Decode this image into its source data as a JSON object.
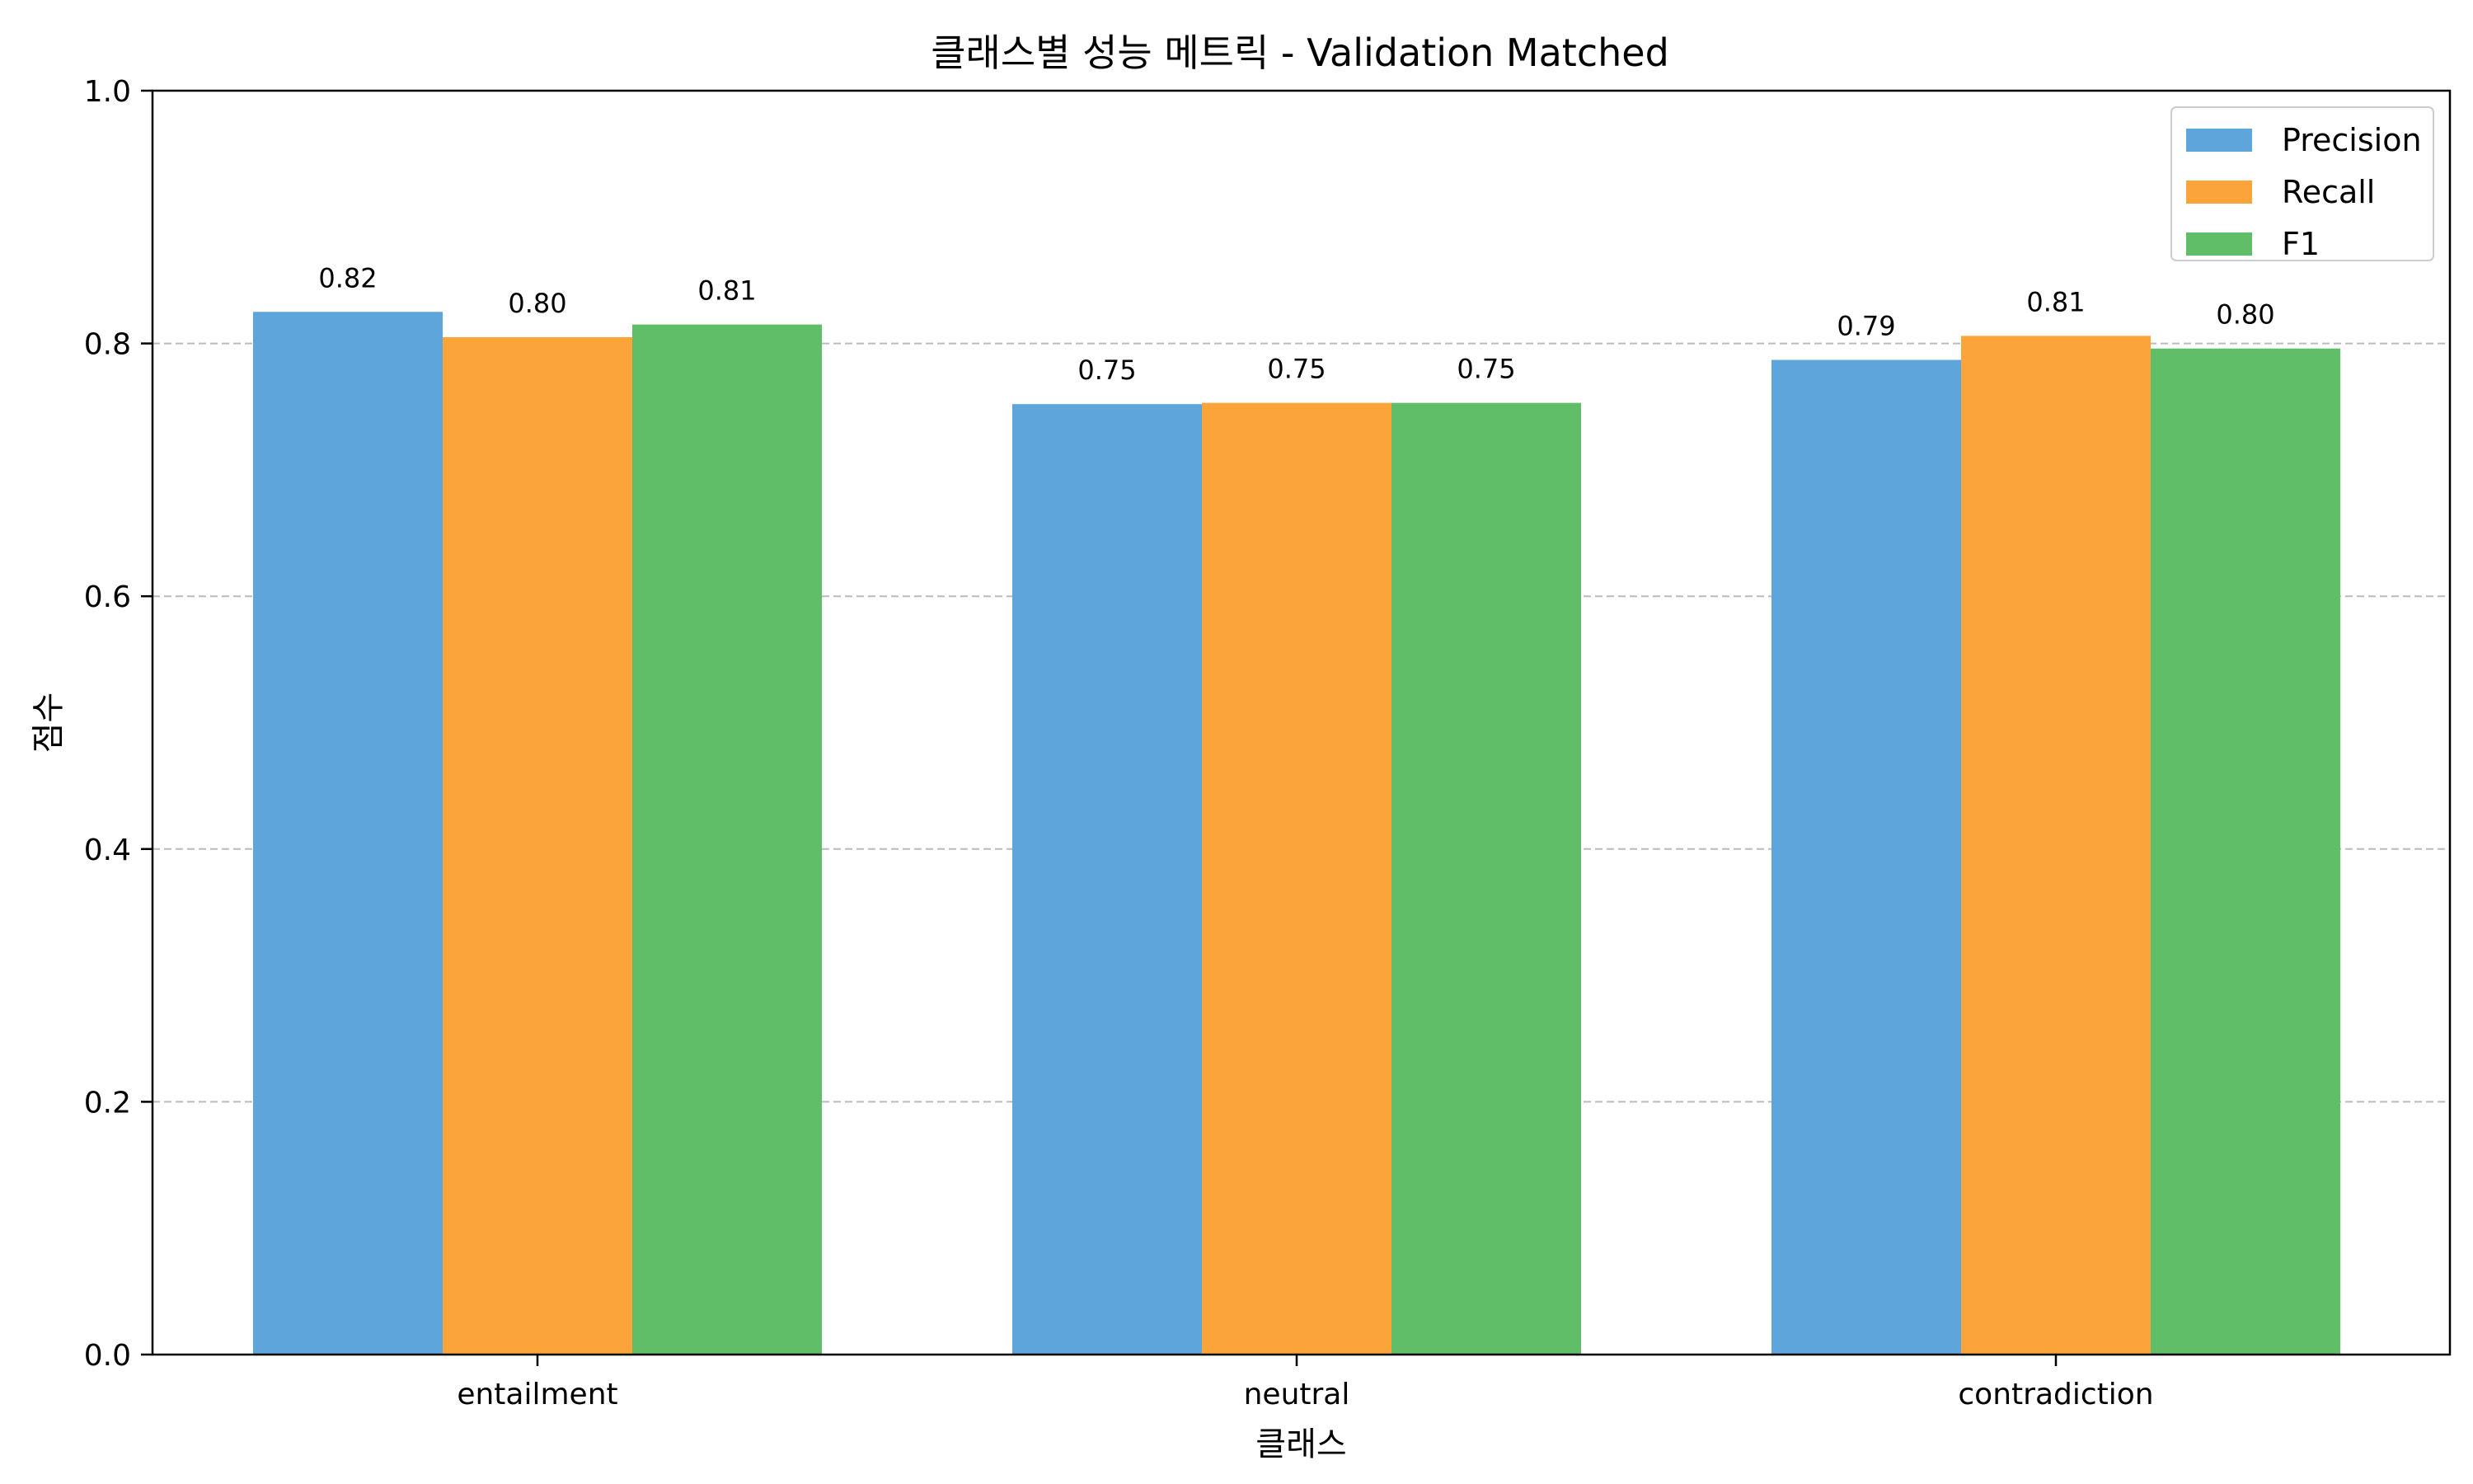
{
  "chart_data": {
    "type": "bar",
    "title": "클래스별 성능 메트릭 - Validation Matched",
    "xlabel": "클래스",
    "ylabel": "점수",
    "categories": [
      "entailment",
      "neutral",
      "contradiction"
    ],
    "series": [
      {
        "name": "Precision",
        "color": "#5da5da",
        "values": [
          0.825,
          0.752,
          0.787
        ],
        "labels": [
          "0.82",
          "0.75",
          "0.79"
        ]
      },
      {
        "name": "Recall",
        "color": "#faa43a",
        "values": [
          0.805,
          0.753,
          0.806
        ],
        "labels": [
          "0.80",
          "0.75",
          "0.81"
        ]
      },
      {
        "name": "F1",
        "color": "#60bd68",
        "values": [
          0.815,
          0.753,
          0.796
        ],
        "labels": [
          "0.81",
          "0.75",
          "0.80"
        ]
      }
    ],
    "ylim": [
      0,
      1.0
    ],
    "yticks": [
      0.0,
      0.2,
      0.4,
      0.6,
      0.8,
      1.0
    ],
    "ytick_labels": [
      "0.0",
      "0.2",
      "0.4",
      "0.6",
      "0.8",
      "1.0"
    ],
    "grid": {
      "axis": "y",
      "style": "dashed",
      "color": "#bbbbbb"
    },
    "legend": {
      "position": "top-right"
    }
  }
}
